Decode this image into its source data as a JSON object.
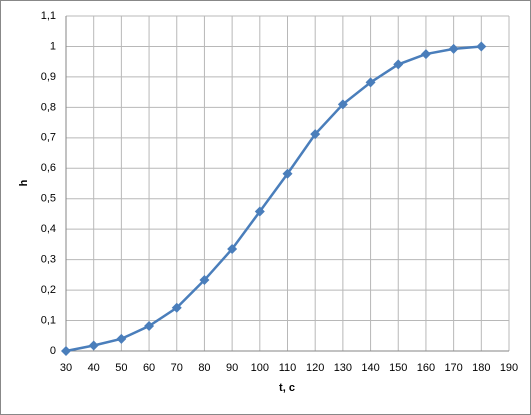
{
  "chart_data": {
    "type": "line",
    "xlabel": "t, c",
    "ylabel": "h",
    "x": [
      30,
      40,
      50,
      60,
      70,
      80,
      90,
      100,
      110,
      120,
      130,
      140,
      150,
      160,
      170,
      180
    ],
    "series": [
      {
        "color": "#4a7ebb",
        "values": [
          0,
          0.018,
          0.04,
          0.082,
          0.142,
          0.233,
          0.335,
          0.458,
          0.582,
          0.712,
          0.81,
          0.882,
          0.941,
          0.975,
          0.992,
          1.0
        ]
      }
    ],
    "xlim": [
      30,
      190
    ],
    "xticks": [
      30,
      40,
      50,
      60,
      70,
      80,
      90,
      100,
      110,
      120,
      130,
      140,
      150,
      160,
      170,
      180,
      190
    ],
    "ylim": [
      0,
      1.1
    ],
    "yticks": [
      0,
      {
        "value": 0.1,
        "label": "0,1"
      },
      {
        "value": 0.2,
        "label": "0,2"
      },
      {
        "value": 0.3,
        "label": "0,3"
      },
      {
        "value": 0.4,
        "label": "0,4"
      },
      {
        "value": 0.5,
        "label": "0,5"
      },
      {
        "value": 0.6,
        "label": "0,6"
      },
      {
        "value": 0.7,
        "label": "0,7"
      },
      {
        "value": 0.8,
        "label": "0,8"
      },
      {
        "value": 0.9,
        "label": "0,9"
      },
      1,
      {
        "value": 1.1,
        "label": "1,1"
      }
    ],
    "grid": true
  }
}
